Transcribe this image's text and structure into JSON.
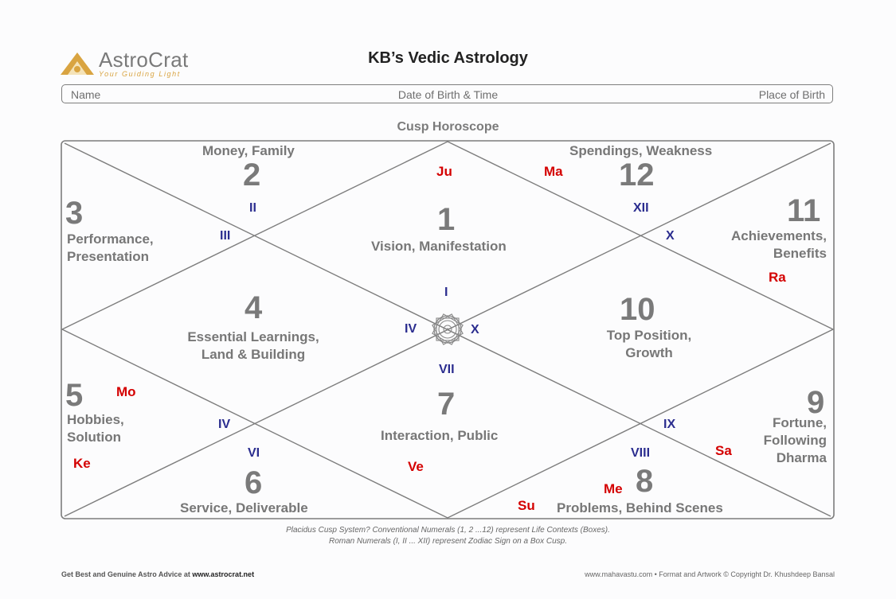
{
  "logo": {
    "name": "AstroCrat",
    "tagline": "Your Guiding Light"
  },
  "title": "KB’s Vedic Astrology",
  "info": {
    "name": "Name",
    "dob": "Date of Birth & Time",
    "place": "Place of Birth"
  },
  "subtitle": "Cusp Horoscope",
  "houses": {
    "h1": {
      "num": "1",
      "label": "Vision, Manifestation"
    },
    "h2": {
      "num": "2",
      "label": "Money, Family"
    },
    "h3": {
      "num": "3",
      "label1": "Performance,",
      "label2": "Presentation"
    },
    "h4": {
      "num": "4",
      "label1": "Essential Learnings,",
      "label2": "Land & Building"
    },
    "h5": {
      "num": "5",
      "label1": "Hobbies,",
      "label2": "Solution"
    },
    "h6": {
      "num": "6",
      "label": "Service, Deliverable"
    },
    "h7": {
      "num": "7",
      "label": "Interaction, Public"
    },
    "h8": {
      "num": "8",
      "label": "Problems, Behind Scenes"
    },
    "h9": {
      "num": "9",
      "label1": "Fortune,",
      "label2": "Following",
      "label3": "Dharma"
    },
    "h10": {
      "num": "10",
      "label1": "Top Position,",
      "label2": "Growth"
    },
    "h11": {
      "num": "11",
      "label1": "Achievements,",
      "label2": "Benefits"
    },
    "h12": {
      "num": "12",
      "label": "Spendings, Weakness"
    }
  },
  "signs": {
    "s_ii": "II",
    "s_iii": "III",
    "s_xii": "XII",
    "s_x_top": "X",
    "s_i": "I",
    "s_iv_c": "IV",
    "s_x_c": "X",
    "s_vii": "VII",
    "s_iv_low": "IV",
    "s_vi": "VI",
    "s_ix": "IX",
    "s_viii": "VIII"
  },
  "planets": {
    "ju": "Ju",
    "ma": "Ma",
    "ra": "Ra",
    "mo": "Mo",
    "ke": "Ke",
    "ve": "Ve",
    "su": "Su",
    "me": "Me",
    "sa": "Sa"
  },
  "notes": {
    "line1": "Placidus Cusp System? Conventional Numerals (1, 2 ...12) represent Life Contexts (Boxes).",
    "line2": "Roman Numerals (I, II ... XII) represent Zodiac Sign on a Box Cusp."
  },
  "footer": {
    "left_prefix": "Get Best and Genuine Astro Advice at ",
    "left_site": "www.astrocrat.net",
    "right": "www.mahavastu.com • Format and Artwork © Copyright Dr. Khushdeep Bansal"
  },
  "colors": {
    "line": "#7d7d7d",
    "roman": "#2b2d8f",
    "planet": "#d40000",
    "logo_gold": "#d9a441"
  }
}
